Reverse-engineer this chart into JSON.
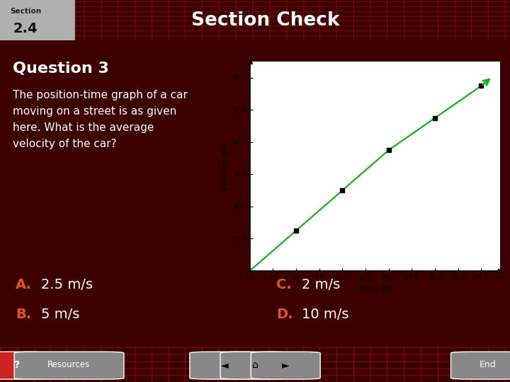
{
  "title": "Section Check",
  "section_text": "Section",
  "section_num": "2.4",
  "question": "Question 3",
  "question_text": "The position-time graph of a car\nmoving on a street is as given\nhere. What is the average\nvelocity of the car?",
  "answers": [
    {
      "letter": "A.",
      "text": "2.5 m/s",
      "col": 0
    },
    {
      "letter": "B.",
      "text": "5 m/s",
      "col": 0
    },
    {
      "letter": "C.",
      "text": "2 m/s",
      "col": 1
    },
    {
      "letter": "D.",
      "text": "10 m/s",
      "col": 1
    }
  ],
  "bg_color": "#3d0000",
  "header_bg": "#990000",
  "header_grid": "#bb0000",
  "title_color": "#ffffff",
  "answer_letter_color": "#dd5522",
  "answer_text_color": "#ffffff",
  "question_color": "#ffffff",
  "section_badge_color": "#b0b0b0",
  "graph": {
    "time_data": [
      0.0,
      5.0,
      10.0,
      15.0,
      20.0,
      25.0
    ],
    "position_data": [
      0.0,
      12.5,
      25.0,
      37.5,
      47.5,
      57.5
    ],
    "xlabel": "Time (s)",
    "ylabel": "Position (m)",
    "xlim": [
      0,
      27
    ],
    "ylim": [
      0,
      65
    ],
    "xticks": [
      0.0,
      2.5,
      5.0,
      7.5,
      10.0,
      12.5,
      15.0,
      17.5,
      20.0,
      22.5,
      25.0
    ],
    "yticks": [
      10.0,
      20.0,
      30.0,
      40.0,
      50.0,
      60.0
    ],
    "line_color": "#00bb00",
    "marker_color": "#000000",
    "arrow_color": "#00bb00"
  },
  "footer_bg": "#aa0000",
  "footer_grid": "#cc0000"
}
